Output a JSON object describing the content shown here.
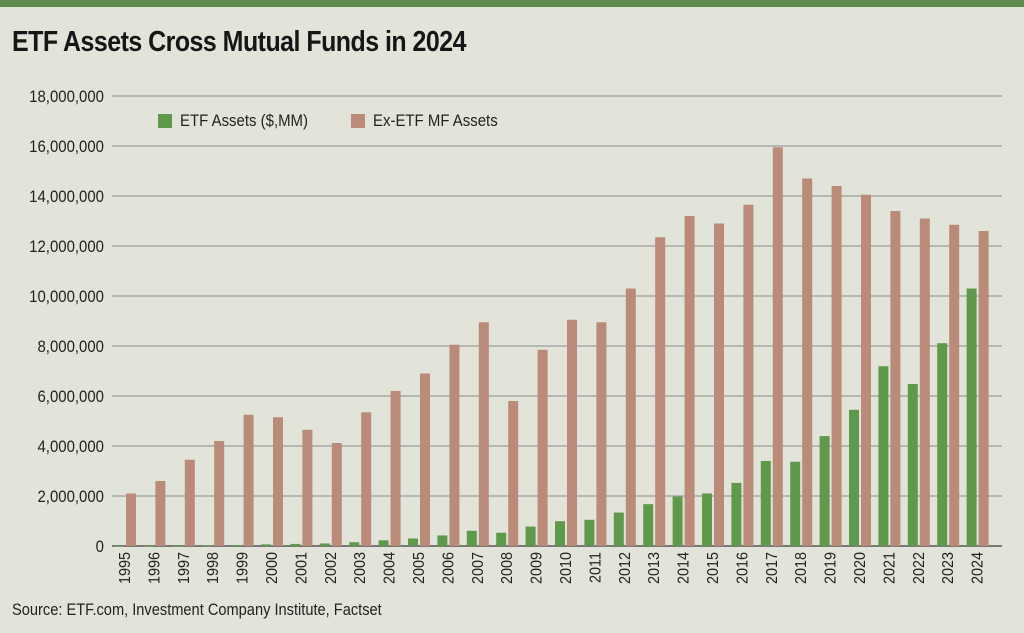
{
  "page": {
    "title": "ETF Assets Cross Mutual Funds in 2024",
    "source": "Source: ETF.com, Investment Company Institute, Factset"
  },
  "colors": {
    "etf": "#5f9a4c",
    "mf": "#b98b78",
    "grid": "#8a8a86",
    "background": "#e2e4da",
    "accent_bar": "#5f8a4e"
  },
  "chart_data": {
    "type": "bar",
    "title": "ETF Assets Cross Mutual Funds in 2024",
    "xlabel": "",
    "ylabel": "",
    "ylim": [
      0,
      18000000
    ],
    "yticks": [
      0,
      2000000,
      4000000,
      6000000,
      8000000,
      10000000,
      12000000,
      14000000,
      16000000,
      18000000
    ],
    "ytick_labels": [
      "0",
      "2,000,000",
      "4,000,000",
      "6,000,000",
      "8,000,000",
      "10,000,000",
      "12,000,000",
      "14,000,000",
      "16,000,000",
      "18,000,000"
    ],
    "grid": true,
    "legend_position": "top-left",
    "categories": [
      "1995",
      "1996",
      "1997",
      "1998",
      "1999",
      "2000",
      "2001",
      "2002",
      "2003",
      "2004",
      "2005",
      "2006",
      "2007",
      "2008",
      "2009",
      "2010",
      "2011",
      "2012",
      "2013",
      "2014",
      "2015",
      "2016",
      "2017",
      "2018",
      "2019",
      "2020",
      "2021",
      "2022",
      "2023",
      "2024"
    ],
    "series": [
      {
        "name": "ETF Assets ($,MM)",
        "color": "#5f9a4c",
        "values": [
          2000,
          6000,
          7000,
          16000,
          34000,
          66000,
          83000,
          102000,
          151000,
          228000,
          301000,
          423000,
          608000,
          531000,
          777000,
          992000,
          1048000,
          1337000,
          1675000,
          1975000,
          2101000,
          2524000,
          3401000,
          3371000,
          4396000,
          5449000,
          7191000,
          6480000,
          8112000,
          10300000
        ]
      },
      {
        "name": "Ex-ETF MF Assets",
        "color": "#b98b78",
        "values": [
          2100000,
          2600000,
          3450000,
          4200000,
          5250000,
          5150000,
          4650000,
          4120000,
          5350000,
          6200000,
          6900000,
          8050000,
          8950000,
          5800000,
          7850000,
          9050000,
          8950000,
          10300000,
          12350000,
          13200000,
          12900000,
          13650000,
          15950000,
          14700000,
          14400000,
          14050000,
          13400000,
          13100000,
          12850000,
          12600000
        ]
      }
    ]
  }
}
